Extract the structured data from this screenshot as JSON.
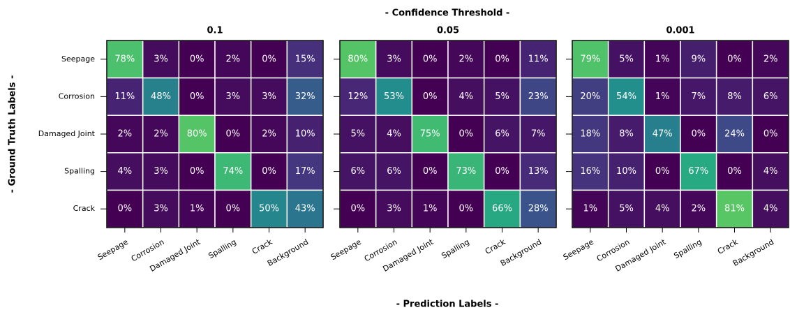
{
  "title": "- Confidence Threshold -",
  "xlabel": "- Prediction Labels -",
  "ylabel": "- Ground Truth Labels -",
  "chart_data": [
    {
      "type": "heatmap",
      "title": "0.1",
      "x_categories": [
        "Seepage",
        "Corrosion",
        "Damaged Joint",
        "Spalling",
        "Crack",
        "Background"
      ],
      "y_categories": [
        "Seepage",
        "Corrosion",
        "Damaged Joint",
        "Spalling",
        "Crack"
      ],
      "values": [
        [
          78,
          3,
          0,
          2,
          0,
          15
        ],
        [
          11,
          48,
          0,
          3,
          3,
          32
        ],
        [
          2,
          2,
          80,
          0,
          2,
          10
        ],
        [
          4,
          3,
          0,
          74,
          0,
          17
        ],
        [
          0,
          3,
          1,
          0,
          50,
          43
        ]
      ],
      "value_labels": [
        [
          "78%",
          "3%",
          "0%",
          "2%",
          "0%",
          "15%"
        ],
        [
          "11%",
          "48%",
          "0%",
          "3%",
          "3%",
          "32%"
        ],
        [
          "2%",
          "2%",
          "80%",
          "0%",
          "2%",
          "10%"
        ],
        [
          "4%",
          "3%",
          "0%",
          "74%",
          "0%",
          "17%"
        ],
        [
          "0%",
          "3%",
          "1%",
          "0%",
          "50%",
          "43%"
        ]
      ],
      "colormap": [
        "#440154",
        "#472d7b",
        "#3b528b",
        "#2c728e",
        "#21918c",
        "#28ae80",
        "#5ec962",
        "#addc30",
        "#fde725"
      ],
      "zlim": [
        0,
        110
      ]
    },
    {
      "type": "heatmap",
      "title": "0.05",
      "x_categories": [
        "Seepage",
        "Corrosion",
        "Damaged Joint",
        "Spalling",
        "Crack",
        "Background"
      ],
      "values": [
        [
          80,
          3,
          0,
          2,
          0,
          11
        ],
        [
          12,
          53,
          0,
          4,
          5,
          23
        ],
        [
          5,
          4,
          75,
          0,
          6,
          7
        ],
        [
          6,
          6,
          0,
          73,
          0,
          13
        ],
        [
          0,
          3,
          1,
          0,
          66,
          28
        ]
      ],
      "value_labels": [
        [
          "80%",
          "3%",
          "0%",
          "2%",
          "0%",
          "11%"
        ],
        [
          "12%",
          "53%",
          "0%",
          "4%",
          "5%",
          "23%"
        ],
        [
          "5%",
          "4%",
          "75%",
          "0%",
          "6%",
          "7%"
        ],
        [
          "6%",
          "6%",
          "0%",
          "73%",
          "0%",
          "13%"
        ],
        [
          "0%",
          "3%",
          "1%",
          "0%",
          "66%",
          "28%"
        ]
      ],
      "colormap": [
        "#440154",
        "#472d7b",
        "#3b528b",
        "#2c728e",
        "#21918c",
        "#28ae80",
        "#5ec962",
        "#addc30",
        "#fde725"
      ],
      "zlim": [
        0,
        110
      ]
    },
    {
      "type": "heatmap",
      "title": "0.001",
      "x_categories": [
        "Seepage",
        "Corrosion",
        "Damaged Joint",
        "Spalling",
        "Crack",
        "Background"
      ],
      "values": [
        [
          79,
          5,
          1,
          9,
          0,
          2
        ],
        [
          20,
          54,
          1,
          7,
          8,
          6
        ],
        [
          18,
          8,
          47,
          0,
          24,
          0
        ],
        [
          16,
          10,
          0,
          67,
          0,
          4
        ],
        [
          1,
          5,
          4,
          2,
          81,
          4
        ]
      ],
      "value_labels": [
        [
          "79%",
          "5%",
          "1%",
          "9%",
          "0%",
          "2%"
        ],
        [
          "20%",
          "54%",
          "1%",
          "7%",
          "8%",
          "6%"
        ],
        [
          "18%",
          "8%",
          "47%",
          "0%",
          "24%",
          "0%"
        ],
        [
          "16%",
          "10%",
          "0%",
          "67%",
          "0%",
          "4%"
        ],
        [
          "1%",
          "5%",
          "4%",
          "2%",
          "81%",
          "4%"
        ]
      ],
      "colormap": [
        "#440154",
        "#472d7b",
        "#3b528b",
        "#2c728e",
        "#21918c",
        "#28ae80",
        "#5ec962",
        "#addc30",
        "#fde725"
      ],
      "zlim": [
        0,
        110
      ]
    }
  ]
}
